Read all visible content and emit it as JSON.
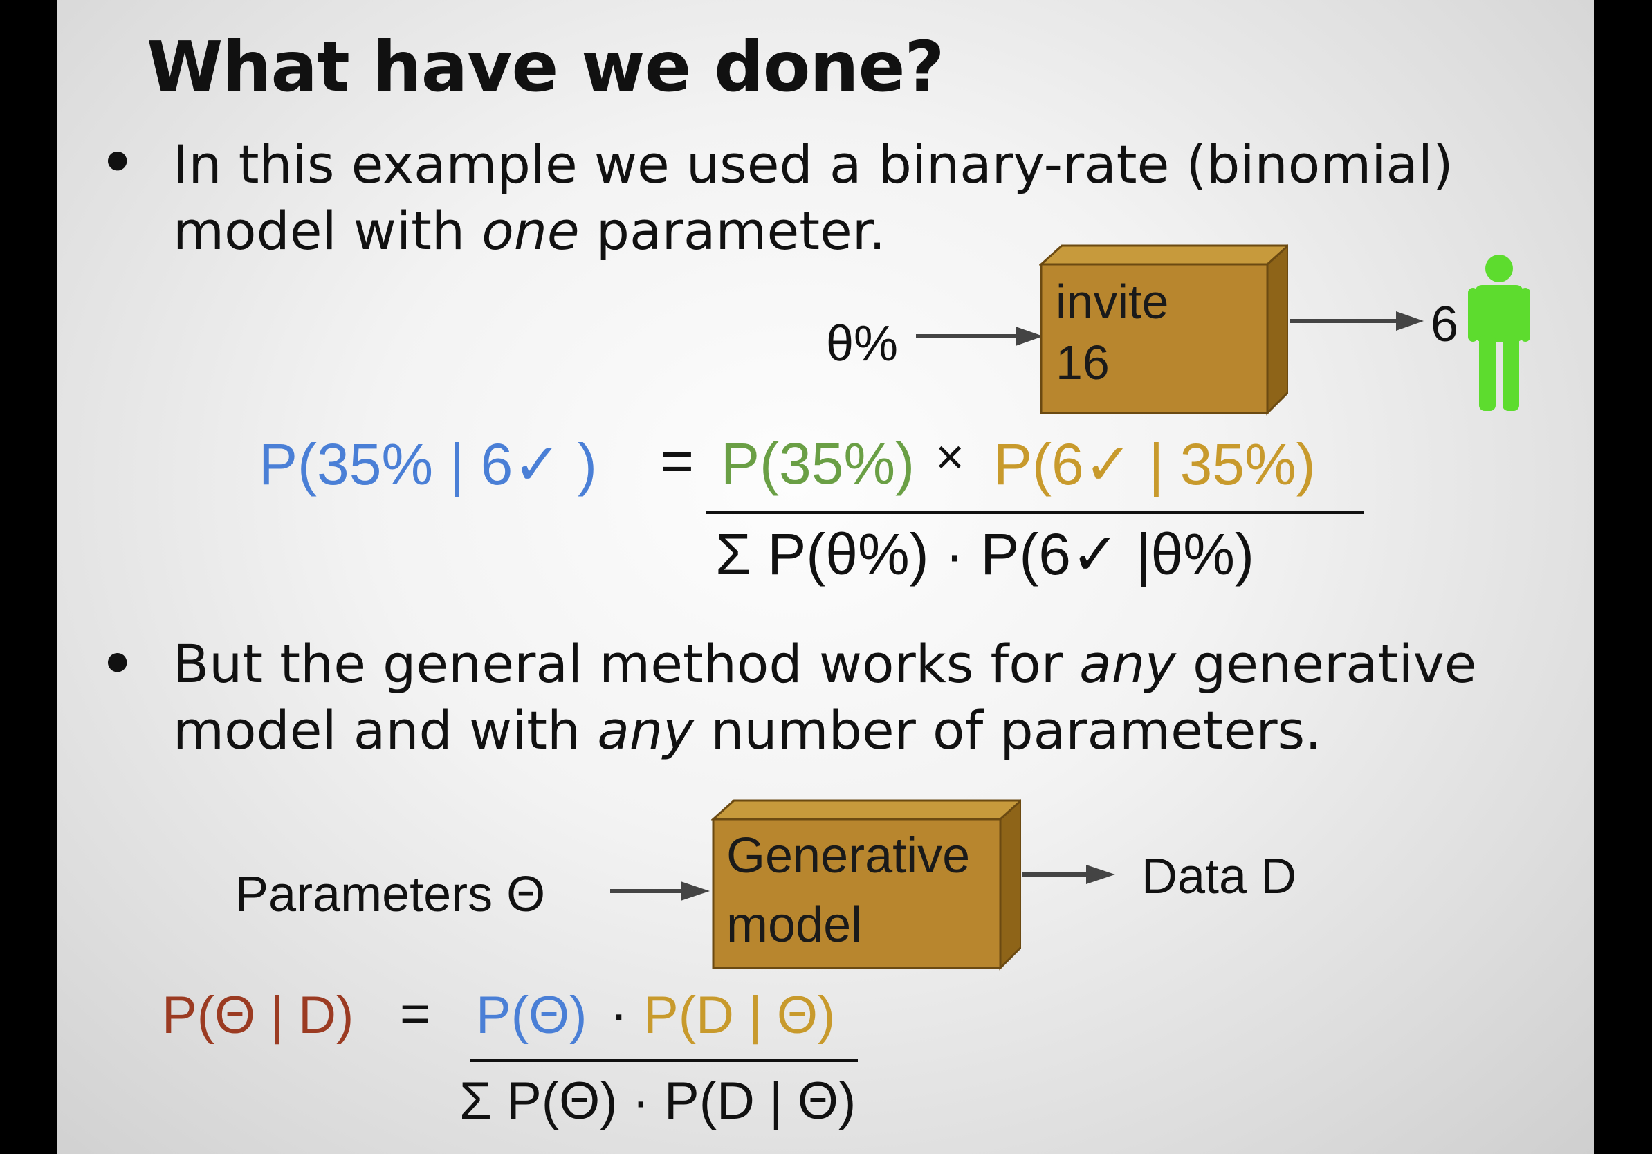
{
  "title": "What have we done?",
  "bullet1": {
    "line1": "In this example we used a binary-rate (binomial)",
    "line2_pre": "model with ",
    "line2_em": "one",
    "line2_post": " parameter."
  },
  "diagram1": {
    "input_label": "θ%",
    "box_line1": "invite",
    "box_line2": "16",
    "output_label": "6",
    "person_icon": "person-icon"
  },
  "equation1": {
    "lhs": "P(35% | 6✓ )",
    "equals": "=",
    "num_prior": "P(35%)",
    "times": "×",
    "num_likelihood": "P(6✓ | 35%)",
    "denominator": "Σ P(θ%) · P(6✓ |θ%)"
  },
  "bullet2": {
    "line1_pre": "But the general method works for ",
    "line1_em": "any",
    "line1_post": " generative",
    "line2_pre": "model and with ",
    "line2_em": "any",
    "line2_post": " number of parameters."
  },
  "diagram2": {
    "input_label": "Parameters Θ",
    "box_line1": "Generative",
    "box_line2": "model",
    "output_label": "Data D"
  },
  "equation2": {
    "lhs": "P(Θ | D)",
    "equals": "=",
    "num_prior": "P(Θ)",
    "dot": "·",
    "num_likelihood": "P(D | Θ)",
    "denominator": "Σ P(Θ) · P(D | Θ)"
  },
  "colors": {
    "posterior_blue": "#4a7fd6",
    "prior_green": "#6a9f45",
    "likelihood_gold": "#c89a2c",
    "posterior_red": "#9b3b22",
    "box_fill": "#b8862e",
    "person_green": "#5ddc2e"
  }
}
